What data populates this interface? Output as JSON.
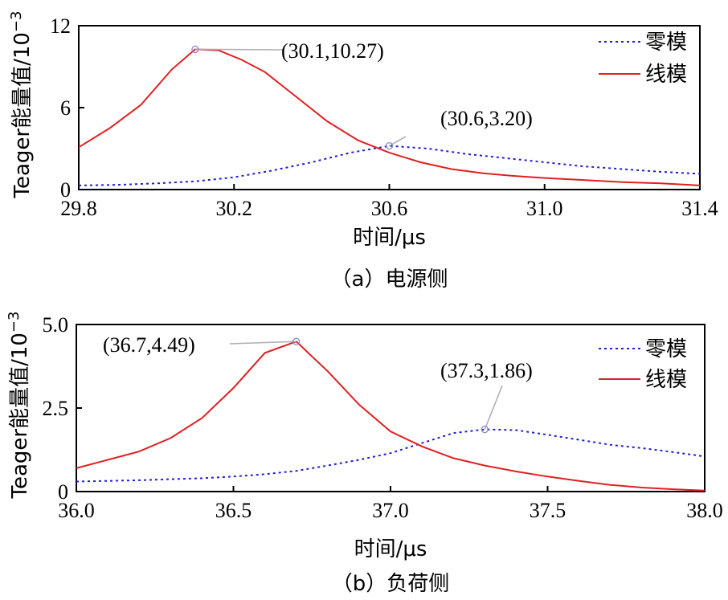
{
  "colors": {
    "zero_mode": "#1f1fd0",
    "line_mode": "#e02020",
    "axis": "#000000",
    "leader": "#b0b0b0"
  },
  "chart_data": [
    {
      "type": "line",
      "caption": "（a）电源侧",
      "xlabel": "时间/μs",
      "ylabel": "Teager能量值/10",
      "ylabel_exp": "−3",
      "xlim": [
        29.8,
        31.4
      ],
      "ylim": [
        0,
        12
      ],
      "xticks": [
        29.8,
        30.2,
        30.6,
        31.0,
        31.4
      ],
      "xtick_labels": [
        "29.8",
        "30.2",
        "30.6",
        "31.0",
        "31.4"
      ],
      "yticks": [
        0,
        6,
        12
      ],
      "ytick_labels": [
        "0",
        "6",
        "12"
      ],
      "legend_position": "top-right",
      "series": [
        {
          "name": "零模",
          "style": "dotted",
          "x": [
            29.8,
            29.9,
            30.0,
            30.1,
            30.2,
            30.3,
            30.4,
            30.5,
            30.6,
            30.7,
            30.8,
            30.9,
            31.0,
            31.1,
            31.2,
            31.3,
            31.4
          ],
          "y": [
            0.3,
            0.35,
            0.45,
            0.6,
            0.9,
            1.4,
            2.0,
            2.7,
            3.2,
            3.0,
            2.6,
            2.3,
            2.0,
            1.7,
            1.5,
            1.3,
            1.15
          ]
        },
        {
          "name": "线模",
          "style": "solid",
          "x": [
            29.8,
            29.88,
            29.96,
            30.04,
            30.1,
            30.16,
            30.22,
            30.28,
            30.36,
            30.44,
            30.52,
            30.6,
            30.68,
            30.76,
            30.84,
            30.92,
            31.0,
            31.1,
            31.2,
            31.3,
            31.4
          ],
          "y": [
            3.1,
            4.5,
            6.2,
            8.8,
            10.27,
            10.2,
            9.5,
            8.6,
            6.8,
            5.0,
            3.6,
            2.7,
            2.0,
            1.5,
            1.2,
            1.0,
            0.85,
            0.7,
            0.55,
            0.45,
            0.3
          ]
        }
      ],
      "annotations": [
        {
          "text": "(30.1,10.27)",
          "x": 30.1,
          "y": 10.27
        },
        {
          "text": "(30.6,3.20)",
          "x": 30.6,
          "y": 3.2
        }
      ]
    },
    {
      "type": "line",
      "caption": "（b）负荷侧",
      "xlabel": "时间/μs",
      "ylabel": "Teager能量值/10",
      "ylabel_exp": "−3",
      "xlim": [
        36.0,
        38.0
      ],
      "ylim": [
        0,
        5.0
      ],
      "xticks": [
        36.0,
        36.5,
        37.0,
        37.5,
        38.0
      ],
      "xtick_labels": [
        "36.0",
        "36.5",
        "37.0",
        "37.5",
        "38.0"
      ],
      "yticks": [
        0,
        2.5,
        5.0
      ],
      "ytick_labels": [
        "0",
        "2.5",
        "5.0"
      ],
      "legend_position": "top-right",
      "series": [
        {
          "name": "零模",
          "style": "dotted",
          "x": [
            36.0,
            36.1,
            36.2,
            36.3,
            36.4,
            36.5,
            36.6,
            36.7,
            36.8,
            36.9,
            37.0,
            37.1,
            37.2,
            37.3,
            37.4,
            37.5,
            37.6,
            37.7,
            37.8,
            37.9,
            38.0
          ],
          "y": [
            0.3,
            0.32,
            0.34,
            0.37,
            0.4,
            0.45,
            0.52,
            0.62,
            0.78,
            0.95,
            1.15,
            1.45,
            1.75,
            1.86,
            1.84,
            1.7,
            1.55,
            1.4,
            1.3,
            1.18,
            1.05
          ]
        },
        {
          "name": "线模",
          "style": "solid",
          "x": [
            36.0,
            36.1,
            36.2,
            36.3,
            36.4,
            36.5,
            36.6,
            36.7,
            36.8,
            36.9,
            37.0,
            37.1,
            37.2,
            37.3,
            37.4,
            37.5,
            37.6,
            37.7,
            37.8,
            37.9,
            38.0
          ],
          "y": [
            0.7,
            0.95,
            1.2,
            1.6,
            2.2,
            3.1,
            4.15,
            4.49,
            3.6,
            2.6,
            1.8,
            1.35,
            1.0,
            0.78,
            0.6,
            0.45,
            0.32,
            0.2,
            0.12,
            0.07,
            0.03
          ]
        }
      ],
      "annotations": [
        {
          "text": "(36.7,4.49)",
          "x": 36.7,
          "y": 4.49
        },
        {
          "text": "(37.3,1.86)",
          "x": 37.3,
          "y": 1.86
        }
      ]
    }
  ]
}
